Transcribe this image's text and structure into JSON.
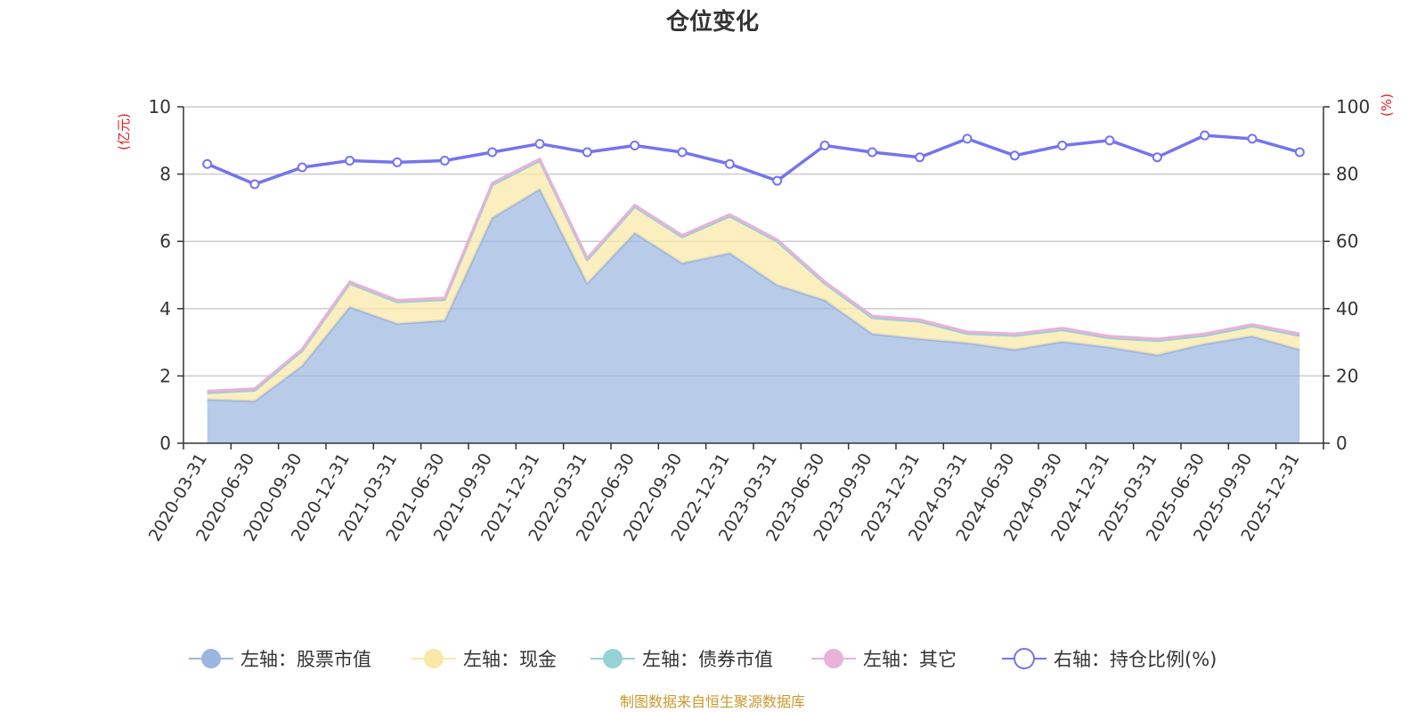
{
  "chart_data": {
    "type": "area",
    "title": "仓位变化",
    "left_axis_unit": "(亿元)",
    "right_axis_unit": "(%)",
    "left_ylim": [
      0,
      10
    ],
    "left_yticks": [
      0,
      2,
      4,
      6,
      8,
      10
    ],
    "right_ylim": [
      0,
      100
    ],
    "right_yticks": [
      0,
      20,
      40,
      60,
      80,
      100
    ],
    "categories": [
      "2020-03-31",
      "2020-06-30",
      "2020-09-30",
      "2020-12-31",
      "2021-03-31",
      "2021-06-30",
      "2021-09-30",
      "2021-12-31",
      "2022-03-31",
      "2022-06-30",
      "2022-09-30",
      "2022-12-31",
      "2023-03-31",
      "2023-06-30",
      "2023-09-30",
      "2023-12-31",
      "2024-03-31",
      "2024-06-30",
      "2024-09-30",
      "2024-12-31",
      "2025-03-31",
      "2025-06-30",
      "2025-09-30",
      "2025-12-31"
    ],
    "series": [
      {
        "name": "左轴：股票市值",
        "axis": "left",
        "color": "#9ab5e0",
        "values": [
          1.3,
          1.25,
          2.3,
          4.05,
          3.55,
          3.65,
          6.7,
          7.55,
          4.75,
          6.25,
          5.35,
          5.65,
          4.7,
          4.25,
          3.25,
          3.1,
          2.98,
          2.78,
          3.02,
          2.85,
          2.62,
          2.95,
          3.18,
          2.78
        ]
      },
      {
        "name": "左轴：现金",
        "axis": "left",
        "color": "#fae8a9",
        "values": [
          0.2,
          0.32,
          0.45,
          0.7,
          0.65,
          0.62,
          0.98,
          0.85,
          0.7,
          0.78,
          0.78,
          1.1,
          1.3,
          0.5,
          0.48,
          0.52,
          0.28,
          0.42,
          0.35,
          0.28,
          0.43,
          0.25,
          0.3,
          0.42
        ]
      },
      {
        "name": "左轴：债券市值",
        "axis": "left",
        "color": "#94d2d4",
        "values": [
          0,
          0,
          0,
          0,
          0,
          0,
          0,
          0,
          0,
          0,
          0,
          0,
          0,
          0,
          0,
          0,
          0,
          0,
          0,
          0,
          0,
          0,
          0,
          0
        ]
      },
      {
        "name": "左轴：其它",
        "axis": "left",
        "color": "#e8b2d9",
        "values": [
          0.05,
          0.05,
          0.05,
          0.05,
          0.05,
          0.05,
          0.05,
          0.05,
          0.05,
          0.05,
          0.05,
          0.05,
          0.05,
          0.05,
          0.05,
          0.05,
          0.05,
          0.05,
          0.05,
          0.05,
          0.05,
          0.05,
          0.05,
          0.05
        ]
      },
      {
        "name": "右轴：持仓比例(%)",
        "axis": "right",
        "color": "#7474f0",
        "values": [
          83,
          77,
          82,
          84,
          83.5,
          84,
          86.5,
          89,
          86.5,
          88.5,
          86.5,
          83,
          78,
          88.5,
          86.5,
          85,
          90.5,
          85.5,
          88.5,
          90,
          85,
          91.5,
          90.5,
          86.5
        ]
      }
    ]
  },
  "source_note": "制图数据来自恒生聚源数据库"
}
